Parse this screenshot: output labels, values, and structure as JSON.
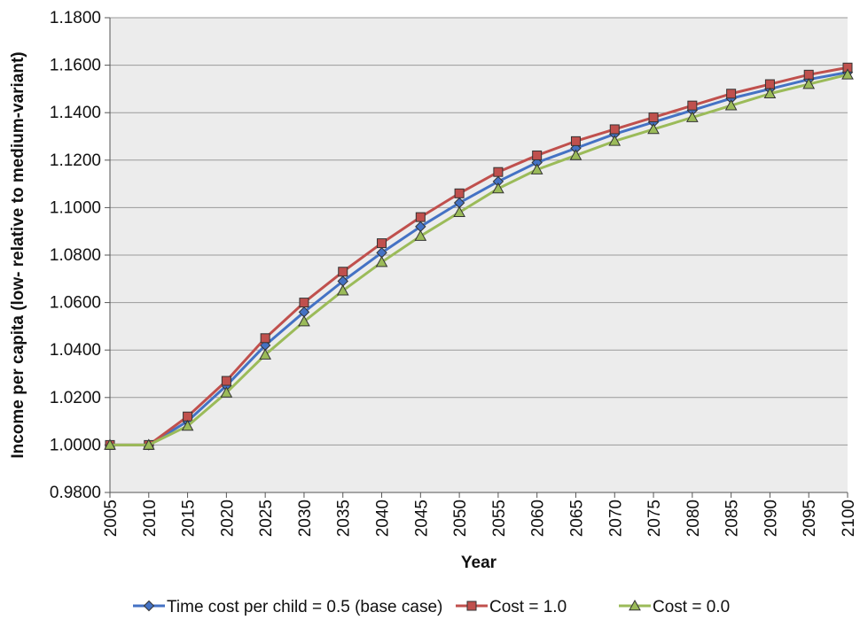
{
  "chart_data": {
    "type": "line",
    "title": "",
    "xlabel": "Year",
    "ylabel": "Income per capita (low- relative to medium-variant)",
    "x": [
      2005,
      2010,
      2015,
      2020,
      2025,
      2030,
      2035,
      2040,
      2045,
      2050,
      2055,
      2060,
      2065,
      2070,
      2075,
      2080,
      2085,
      2090,
      2095,
      2100
    ],
    "xtick_labels": [
      "2005",
      "2010",
      "2015",
      "2020",
      "2025",
      "2030",
      "2035",
      "2040",
      "2045",
      "2050",
      "2055",
      "2060",
      "2065",
      "2070",
      "2075",
      "2080",
      "2085",
      "2090",
      "2095",
      "2100"
    ],
    "ylim": [
      0.98,
      1.18
    ],
    "ytick_labels": [
      "0.9800",
      "1.0000",
      "1.0200",
      "1.0400",
      "1.0600",
      "1.0800",
      "1.1000",
      "1.1200",
      "1.1400",
      "1.1600",
      "1.1800"
    ],
    "grid": "horizontal",
    "legend_position": "bottom",
    "series": [
      {
        "name": "Time cost per child = 0.5 (base case)",
        "color": "#4472C4",
        "marker": "diamond",
        "values": [
          1.0,
          1.0,
          1.01,
          1.025,
          1.042,
          1.056,
          1.069,
          1.081,
          1.092,
          1.102,
          1.111,
          1.119,
          1.125,
          1.131,
          1.136,
          1.141,
          1.146,
          1.15,
          1.154,
          1.157
        ]
      },
      {
        "name": "Cost = 1.0",
        "color": "#C0504D",
        "marker": "square",
        "values": [
          1.0,
          1.0,
          1.012,
          1.027,
          1.045,
          1.06,
          1.073,
          1.085,
          1.096,
          1.106,
          1.115,
          1.122,
          1.128,
          1.133,
          1.138,
          1.143,
          1.148,
          1.152,
          1.156,
          1.159
        ]
      },
      {
        "name": "Cost = 0.0",
        "color": "#9BBB59",
        "marker": "triangle",
        "values": [
          1.0,
          1.0,
          1.008,
          1.022,
          1.038,
          1.052,
          1.065,
          1.077,
          1.088,
          1.098,
          1.108,
          1.116,
          1.122,
          1.128,
          1.133,
          1.138,
          1.143,
          1.148,
          1.152,
          1.156
        ]
      }
    ]
  }
}
